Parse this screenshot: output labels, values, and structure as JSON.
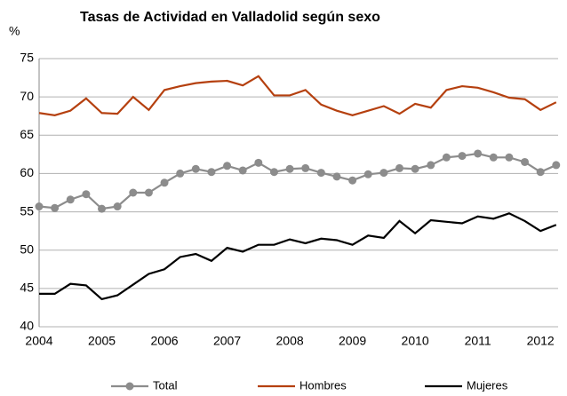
{
  "chart_data": {
    "type": "line",
    "title": "Tasas de Actividad en Valladolid según sexo",
    "y_label": "%",
    "categories": [
      "2004",
      null,
      null,
      null,
      "2005",
      null,
      null,
      null,
      "2006",
      null,
      null,
      null,
      "2007",
      null,
      null,
      null,
      "2008",
      null,
      null,
      null,
      "2009",
      null,
      null,
      null,
      "2010",
      null,
      null,
      null,
      "2011",
      null,
      null,
      null,
      "2012",
      null
    ],
    "series": [
      {
        "name": "Total",
        "color": "#8c8c8c",
        "marker": true,
        "values": [
          55.7,
          55.5,
          56.6,
          57.3,
          55.4,
          55.7,
          57.5,
          57.5,
          58.8,
          60.0,
          60.6,
          60.2,
          61.0,
          60.4,
          61.4,
          60.2,
          60.6,
          60.7,
          60.1,
          59.6,
          59.1,
          59.9,
          60.1,
          60.7,
          60.6,
          61.1,
          62.1,
          62.3,
          62.6,
          62.1,
          62.1,
          61.5,
          60.2,
          61.1
        ]
      },
      {
        "name": "Hombres",
        "color": "#b5400f",
        "marker": false,
        "values": [
          67.9,
          67.6,
          68.2,
          69.8,
          67.9,
          67.8,
          70.0,
          68.3,
          70.9,
          71.4,
          71.8,
          72.0,
          72.1,
          71.5,
          72.7,
          70.2,
          70.2,
          70.9,
          69.0,
          68.2,
          67.6,
          68.2,
          68.8,
          67.8,
          69.1,
          68.6,
          70.9,
          71.4,
          71.2,
          70.6,
          69.9,
          69.7,
          68.3,
          69.3
        ]
      },
      {
        "name": "Mujeres",
        "color": "#000000",
        "marker": false,
        "values": [
          44.3,
          44.3,
          45.6,
          45.4,
          43.6,
          44.1,
          45.5,
          46.9,
          47.5,
          49.1,
          49.5,
          48.6,
          50.3,
          49.8,
          50.7,
          50.7,
          51.4,
          50.9,
          51.5,
          51.3,
          50.7,
          51.9,
          51.6,
          53.8,
          52.2,
          53.9,
          53.7,
          53.5,
          54.4,
          54.1,
          54.8,
          53.8,
          52.5,
          53.3
        ]
      }
    ],
    "ylim": [
      40,
      75
    ],
    "yticks": [
      40,
      45,
      50,
      55,
      60,
      65,
      70,
      75
    ],
    "grid": true
  }
}
